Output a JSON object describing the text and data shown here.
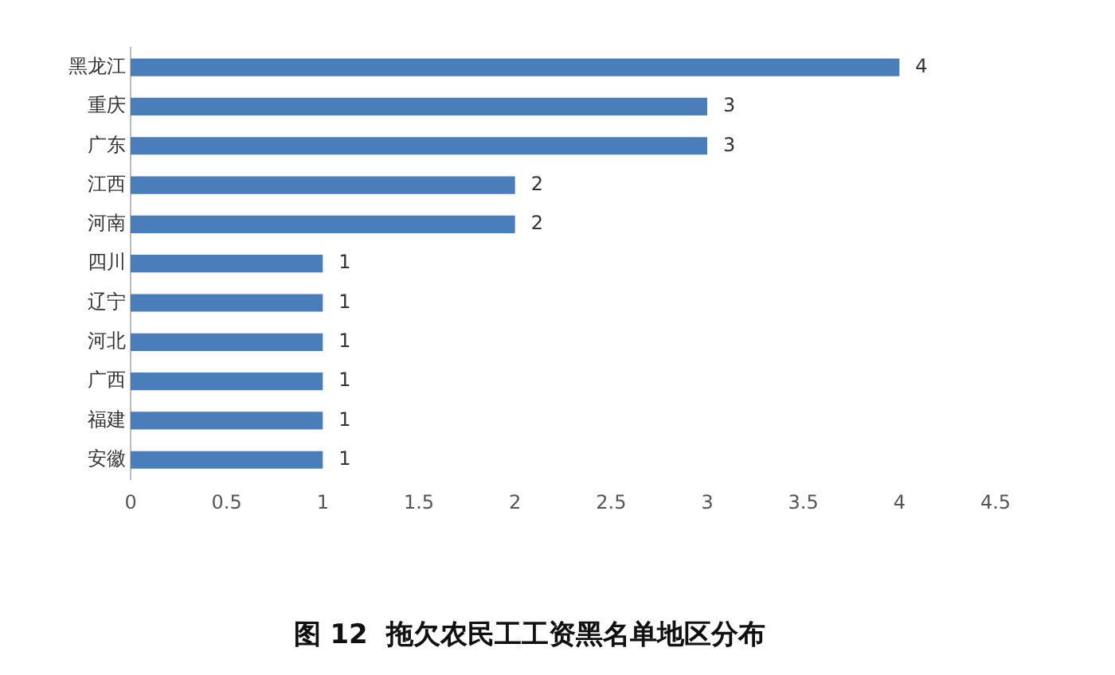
{
  "chart_data": {
    "type": "bar",
    "orientation": "horizontal",
    "title": "图 12  拖欠农民工工资黑名单地区分布",
    "categories": [
      "黑龙江",
      "重庆",
      "广东",
      "江西",
      "河南",
      "四川",
      "辽宁",
      "河北",
      "广西",
      "福建",
      "安徽"
    ],
    "values": [
      4,
      3,
      3,
      2,
      2,
      1,
      1,
      1,
      1,
      1,
      1
    ],
    "color": "#4a7ebb",
    "xlim": [
      0,
      4.5
    ],
    "xticks": [
      0,
      0.5,
      1,
      1.5,
      2,
      2.5,
      3,
      3.5,
      4,
      4.5
    ],
    "grid": false,
    "legend": false,
    "data_labels": true
  }
}
